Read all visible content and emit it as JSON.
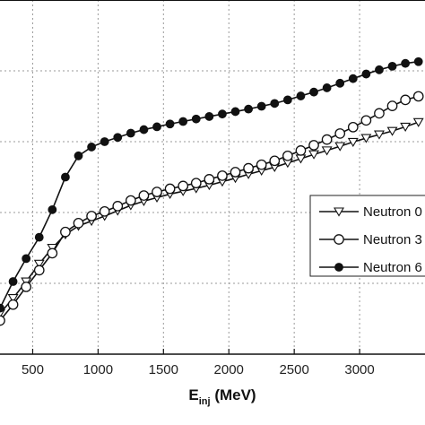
{
  "chart_data": {
    "type": "line",
    "title": "",
    "xlabel": "E",
    "xlabel_sub": "inj",
    "xlabel_unit": " (MeV)",
    "ylabel": "",
    "xlim": [
      250,
      3500
    ],
    "ylim": [
      0,
      1
    ],
    "x_ticks": [
      500,
      1000,
      1500,
      2000,
      2500,
      3000
    ],
    "grid": true,
    "legend_position": "right",
    "series": [
      {
        "name": "Neutron 0",
        "marker": "triangle-down",
        "x": [
          250,
          350,
          450,
          550,
          650,
          750,
          850,
          950,
          1050,
          1150,
          1250,
          1350,
          1450,
          1550,
          1650,
          1750,
          1850,
          1950,
          2050,
          2150,
          2250,
          2350,
          2450,
          2550,
          2650,
          2750,
          2850,
          2950,
          3050,
          3150,
          3250,
          3350,
          3450
        ],
        "y": [
          0.115,
          0.158,
          0.205,
          0.255,
          0.3,
          0.338,
          0.362,
          0.376,
          0.39,
          0.405,
          0.42,
          0.432,
          0.442,
          0.452,
          0.46,
          0.468,
          0.477,
          0.487,
          0.497,
          0.508,
          0.518,
          0.528,
          0.54,
          0.552,
          0.564,
          0.575,
          0.587,
          0.599,
          0.61,
          0.62,
          0.63,
          0.642,
          0.655
        ]
      },
      {
        "name": "Neutron 3",
        "marker": "circle-open",
        "x": [
          250,
          350,
          450,
          550,
          650,
          750,
          850,
          950,
          1050,
          1150,
          1250,
          1350,
          1450,
          1550,
          1650,
          1750,
          1850,
          1950,
          2050,
          2150,
          2250,
          2350,
          2450,
          2550,
          2650,
          2750,
          2850,
          2950,
          3050,
          3150,
          3250,
          3350,
          3450
        ],
        "y": [
          0.095,
          0.14,
          0.19,
          0.237,
          0.285,
          0.345,
          0.37,
          0.39,
          0.403,
          0.418,
          0.434,
          0.448,
          0.458,
          0.467,
          0.475,
          0.483,
          0.494,
          0.504,
          0.514,
          0.525,
          0.535,
          0.546,
          0.56,
          0.575,
          0.59,
          0.606,
          0.623,
          0.641,
          0.66,
          0.68,
          0.701,
          0.718,
          0.728
        ]
      },
      {
        "name": "Neutron 6",
        "marker": "circle-filled",
        "x": [
          250,
          350,
          450,
          550,
          650,
          750,
          850,
          950,
          1050,
          1150,
          1250,
          1350,
          1450,
          1550,
          1650,
          1750,
          1850,
          1950,
          2050,
          2150,
          2250,
          2350,
          2450,
          2550,
          2650,
          2750,
          2850,
          2950,
          3050,
          3150,
          3250,
          3350,
          3450
        ],
        "y": [
          0.13,
          0.205,
          0.27,
          0.33,
          0.408,
          0.5,
          0.56,
          0.585,
          0.6,
          0.612,
          0.624,
          0.634,
          0.642,
          0.65,
          0.657,
          0.664,
          0.671,
          0.678,
          0.685,
          0.692,
          0.7,
          0.708,
          0.718,
          0.729,
          0.74,
          0.752,
          0.765,
          0.778,
          0.791,
          0.803,
          0.813,
          0.821,
          0.826
        ]
      }
    ]
  }
}
